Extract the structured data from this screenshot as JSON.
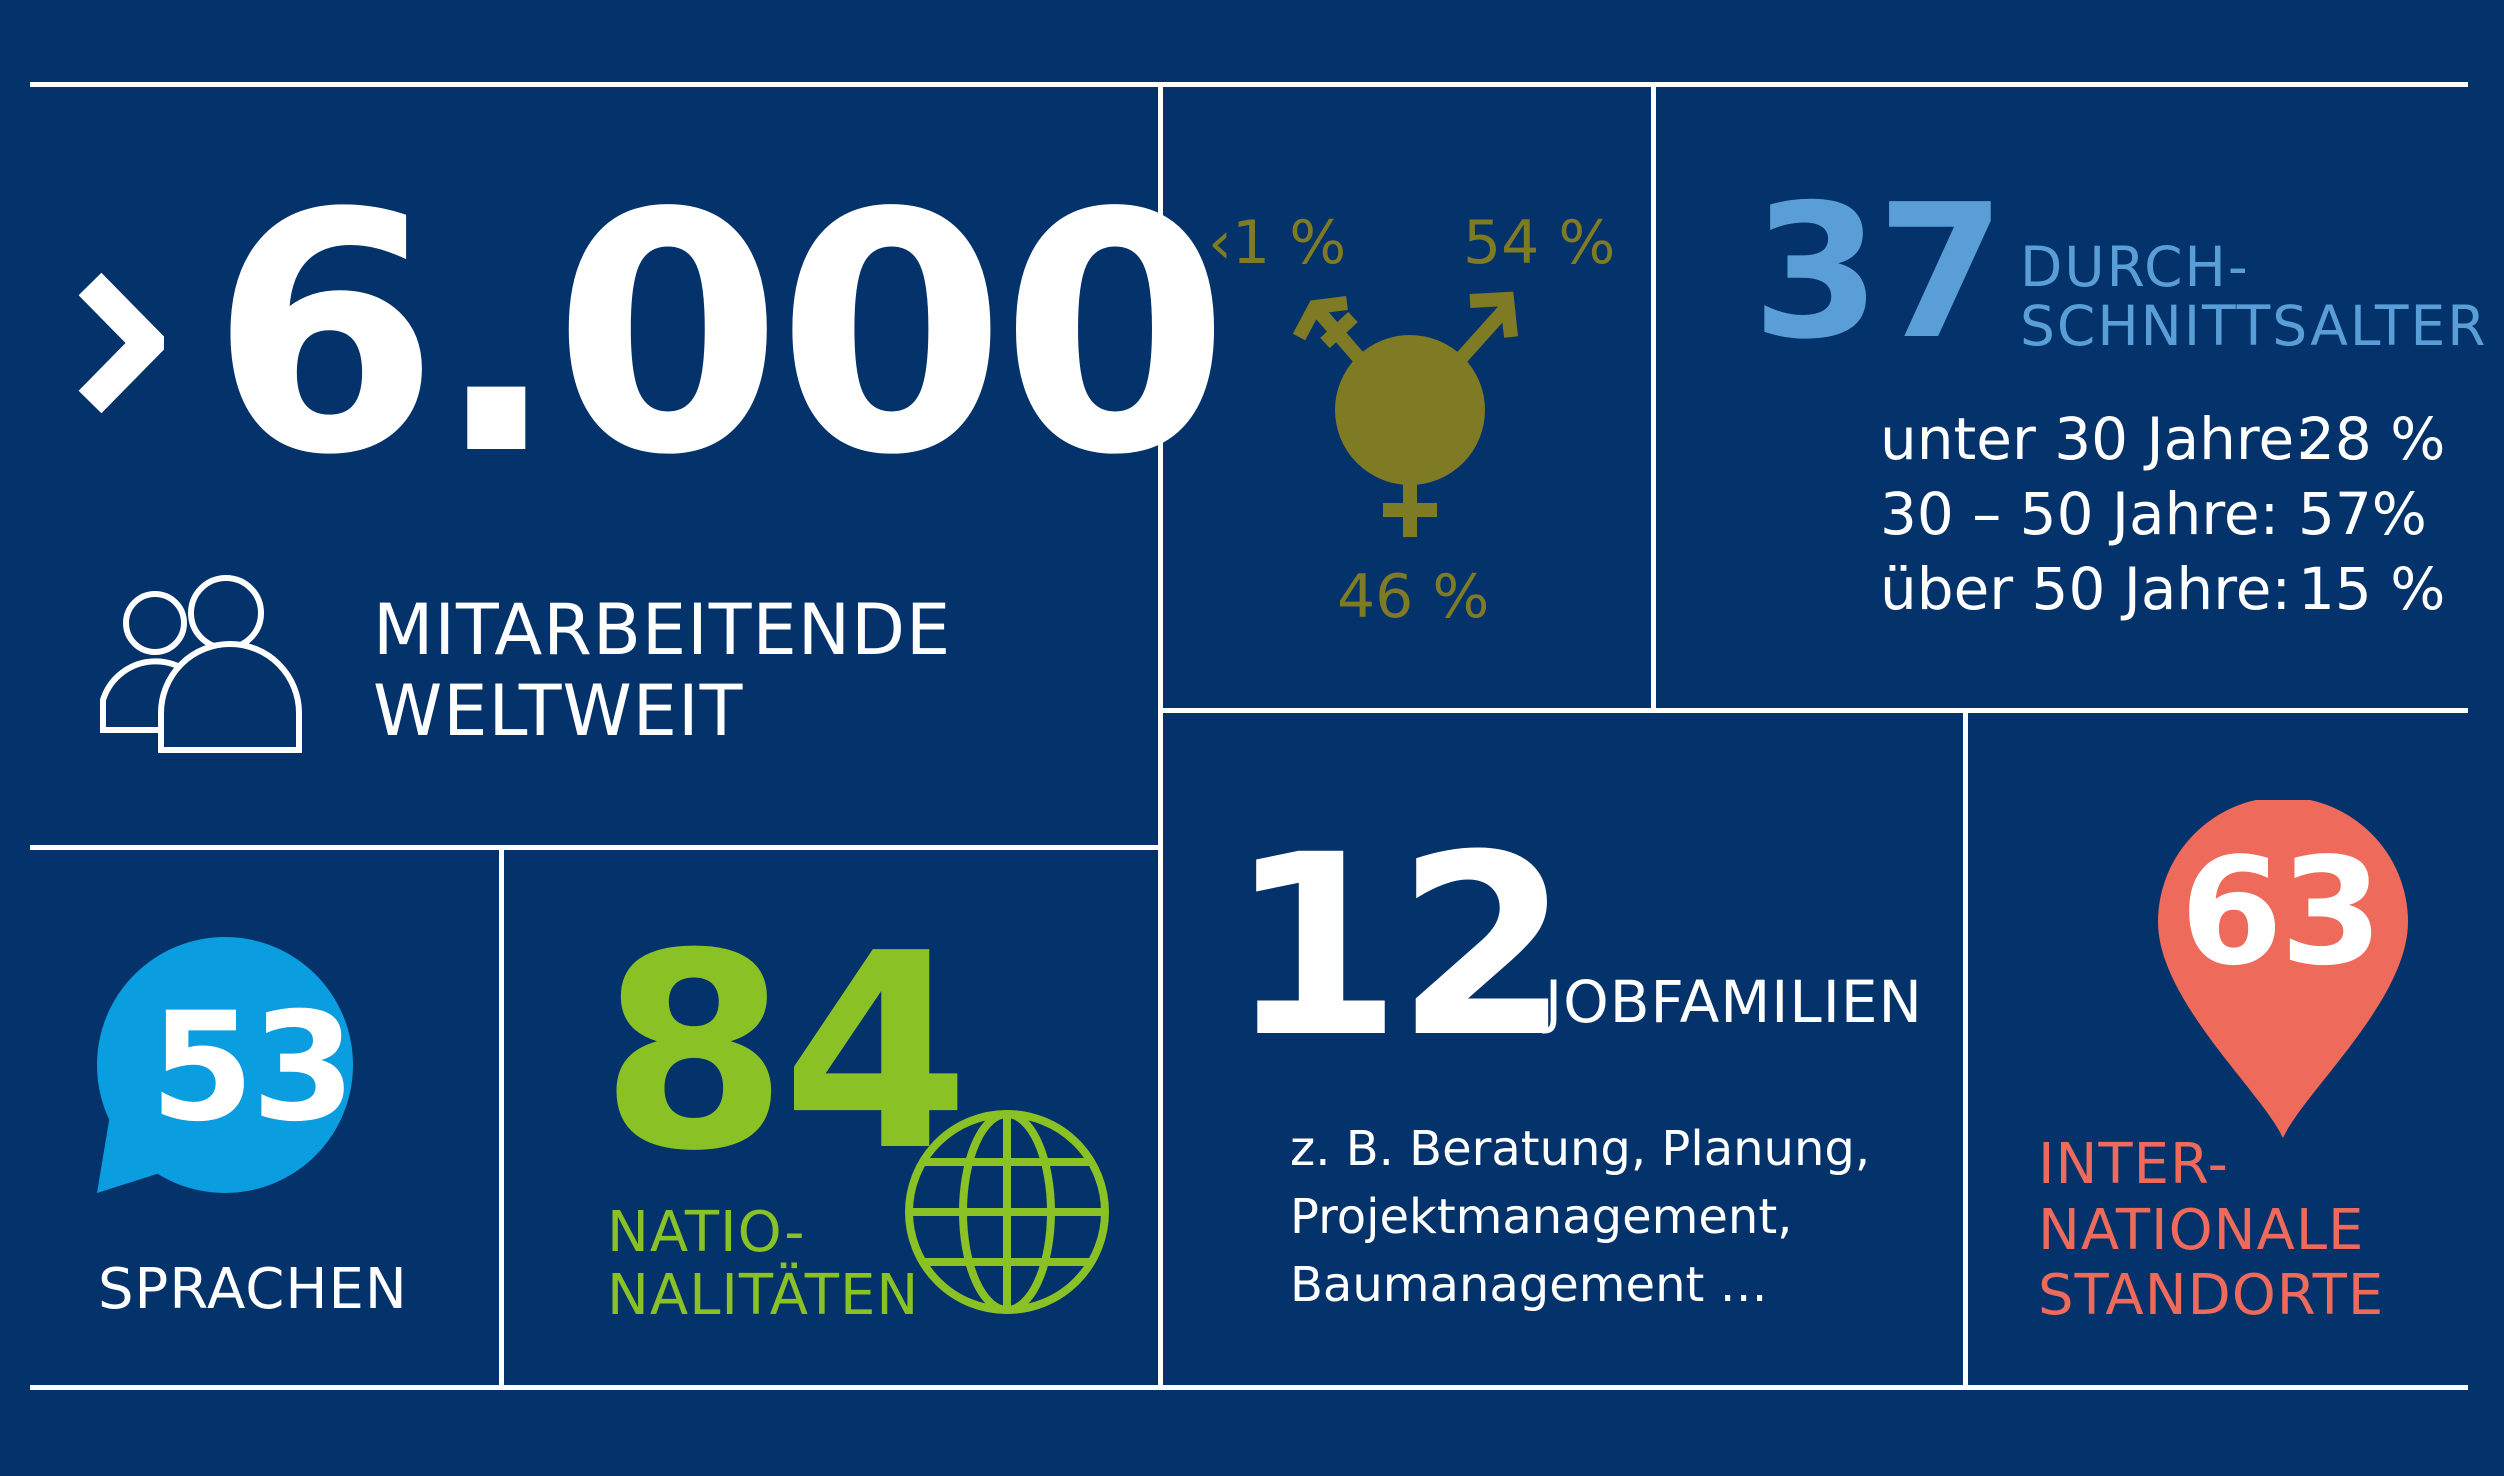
{
  "employees": {
    "prefix": "›",
    "number": "6.000",
    "label_line1": "MITARBEITENDE",
    "label_line2": "WELTWEIT"
  },
  "gender": {
    "diverse": "‹1 %",
    "male": "54 %",
    "female": "46 %",
    "color": "#7f7a24"
  },
  "age": {
    "number": "37",
    "label_line1": "DURCH-",
    "label_line2": "SCHNITTSALTER",
    "rows": [
      {
        "label": "unter 30 Jahre:",
        "value": "28 %"
      },
      {
        "label": "30 – 50 Jahre:",
        "value": "57%"
      },
      {
        "label": "über 50 Jahre:",
        "value": "15 %"
      }
    ]
  },
  "languages": {
    "number": "53",
    "label": "SPRACHEN",
    "color": "#0a9ee0"
  },
  "nationalities": {
    "number": "84",
    "label_line1": "NATIO-",
    "label_line2": "NALITÄTEN",
    "color": "#8ac125"
  },
  "jobs": {
    "number": "12",
    "label": "JOBFAMILIEN",
    "desc_line1": "z. B. Beratung, Planung,",
    "desc_line2": "Projektmanagement,",
    "desc_line3": "Baumanagement …"
  },
  "locations": {
    "number": "63",
    "label_line1": "INTER-",
    "label_line2": "NATIONALE",
    "label_line3": "STANDORTE",
    "color": "#ee6a5a"
  }
}
